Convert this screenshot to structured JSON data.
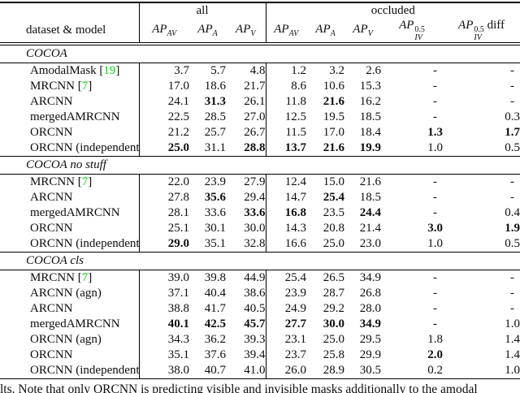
{
  "colors": {
    "citation_green": "#00DB00",
    "rule_black": "#000000"
  },
  "caption_fragment": "lts. Note that only ORCNN is predicting visible and invisible masks additionally to the amodal",
  "table": {
    "corner_label": "dataset & model",
    "groups": [
      {
        "label": "all",
        "span": 3
      },
      {
        "label": "occluded",
        "span": 5
      }
    ],
    "columns": [
      {
        "base": "AP",
        "sub": "AV"
      },
      {
        "base": "AP",
        "sub": "A"
      },
      {
        "base": "AP",
        "sub": "V"
      },
      {
        "base": "AP",
        "sub": "AV"
      },
      {
        "base": "AP",
        "sub": "A"
      },
      {
        "base": "AP",
        "sub": "V"
      },
      {
        "base": "AP",
        "sub": "IV",
        "sup": "0.5"
      },
      {
        "base": "AP",
        "sub": "IV",
        "sup": "0.5",
        "suffix": " diff"
      }
    ],
    "sections": [
      {
        "title": "COCOA",
        "rows": [
          {
            "model": "AmodalMask",
            "cite": "19",
            "values": [
              {
                "v": "3.7"
              },
              {
                "v": "5.7"
              },
              {
                "v": "4.8"
              },
              {
                "v": "1.2"
              },
              {
                "v": "3.2"
              },
              {
                "v": "2.6"
              },
              {
                "v": "-"
              },
              {
                "v": "-"
              }
            ]
          },
          {
            "model": "MRCNN",
            "cite": "7",
            "values": [
              {
                "v": "17.0"
              },
              {
                "v": "18.6"
              },
              {
                "v": "21.7"
              },
              {
                "v": "8.6"
              },
              {
                "v": "10.6"
              },
              {
                "v": "15.3"
              },
              {
                "v": "-"
              },
              {
                "v": "-"
              }
            ]
          },
          {
            "model": "ARCNN",
            "values": [
              {
                "v": "24.1"
              },
              {
                "v": "31.3",
                "bold": true
              },
              {
                "v": "26.1"
              },
              {
                "v": "11.8"
              },
              {
                "v": "21.6",
                "bold": true
              },
              {
                "v": "16.2"
              },
              {
                "v": "-"
              },
              {
                "v": "-"
              }
            ]
          },
          {
            "model": "mergedAMRCNN",
            "values": [
              {
                "v": "22.5"
              },
              {
                "v": "28.5"
              },
              {
                "v": "27.0"
              },
              {
                "v": "12.5"
              },
              {
                "v": "19.5"
              },
              {
                "v": "18.5"
              },
              {
                "v": "-"
              },
              {
                "v": "0.3"
              }
            ]
          },
          {
            "model": "ORCNN",
            "values": [
              {
                "v": "21.2"
              },
              {
                "v": "25.7"
              },
              {
                "v": "26.7"
              },
              {
                "v": "11.5"
              },
              {
                "v": "17.0"
              },
              {
                "v": "18.4"
              },
              {
                "v": "1.3",
                "bold": true
              },
              {
                "v": "1.7",
                "bold": true
              }
            ]
          },
          {
            "model": "ORCNN (independent)",
            "values": [
              {
                "v": "25.0",
                "bold": true
              },
              {
                "v": "31.1"
              },
              {
                "v": "28.8",
                "bold": true
              },
              {
                "v": "13.7",
                "bold": true
              },
              {
                "v": "21.6",
                "bold": true
              },
              {
                "v": "19.9",
                "bold": true
              },
              {
                "v": "1.0"
              },
              {
                "v": "0.5"
              }
            ]
          }
        ]
      },
      {
        "title": "COCOA no stuff",
        "rows": [
          {
            "model": "MRCNN",
            "cite": "7",
            "values": [
              {
                "v": "22.0"
              },
              {
                "v": "23.9"
              },
              {
                "v": "27.9"
              },
              {
                "v": "12.4"
              },
              {
                "v": "15.0"
              },
              {
                "v": "21.6"
              },
              {
                "v": "-"
              },
              {
                "v": "-"
              }
            ]
          },
          {
            "model": "ARCNN",
            "values": [
              {
                "v": "27.8"
              },
              {
                "v": "35.6",
                "bold": true
              },
              {
                "v": "29.4"
              },
              {
                "v": "14.7"
              },
              {
                "v": "25.4",
                "bold": true
              },
              {
                "v": "18.5"
              },
              {
                "v": "-"
              },
              {
                "v": "-"
              }
            ]
          },
          {
            "model": "mergedAMRCNN",
            "values": [
              {
                "v": "28.1"
              },
              {
                "v": "33.6"
              },
              {
                "v": "33.6",
                "bold": true
              },
              {
                "v": "16.8",
                "bold": true
              },
              {
                "v": "23.5"
              },
              {
                "v": "24.4",
                "bold": true
              },
              {
                "v": "-"
              },
              {
                "v": "0.4"
              }
            ]
          },
          {
            "model": "ORCNN",
            "values": [
              {
                "v": "25.1"
              },
              {
                "v": "30.1"
              },
              {
                "v": "30.0"
              },
              {
                "v": "14.3"
              },
              {
                "v": "20.8"
              },
              {
                "v": "21.4"
              },
              {
                "v": "3.0",
                "bold": true
              },
              {
                "v": "1.9",
                "bold": true
              }
            ]
          },
          {
            "model": "ORCNN (independent)",
            "values": [
              {
                "v": "29.0",
                "bold": true
              },
              {
                "v": "35.1"
              },
              {
                "v": "32.8"
              },
              {
                "v": "16.6"
              },
              {
                "v": "25.0"
              },
              {
                "v": "23.0"
              },
              {
                "v": "1.0"
              },
              {
                "v": "0.5"
              }
            ]
          }
        ]
      },
      {
        "title": "COCOA cls",
        "rows": [
          {
            "model": "MRCNN",
            "cite": "7",
            "values": [
              {
                "v": "39.0"
              },
              {
                "v": "39.8"
              },
              {
                "v": "44.9"
              },
              {
                "v": "25.4"
              },
              {
                "v": "26.5"
              },
              {
                "v": "34.9"
              },
              {
                "v": "-"
              },
              {
                "v": "-"
              }
            ]
          },
          {
            "model": "ARCNN (agn)",
            "values": [
              {
                "v": "37.1"
              },
              {
                "v": "40.4"
              },
              {
                "v": "38.6"
              },
              {
                "v": "23.9"
              },
              {
                "v": "28.7"
              },
              {
                "v": "26.8"
              },
              {
                "v": "-"
              },
              {
                "v": "-"
              }
            ]
          },
          {
            "model": "ARCNN",
            "values": [
              {
                "v": "38.8"
              },
              {
                "v": "41.7"
              },
              {
                "v": "40.5"
              },
              {
                "v": "24.9"
              },
              {
                "v": "29.2"
              },
              {
                "v": "28.0"
              },
              {
                "v": "-"
              },
              {
                "v": "-"
              }
            ]
          },
          {
            "model": "mergedAMRCNN",
            "values": [
              {
                "v": "40.1",
                "bold": true
              },
              {
                "v": "42.5",
                "bold": true
              },
              {
                "v": "45.7",
                "bold": true
              },
              {
                "v": "27.7",
                "bold": true
              },
              {
                "v": "30.0",
                "bold": true
              },
              {
                "v": "34.9",
                "bold": true
              },
              {
                "v": "-"
              },
              {
                "v": "1.0"
              }
            ]
          },
          {
            "model": "ORCNN (agn)",
            "values": [
              {
                "v": "34.3"
              },
              {
                "v": "36.2"
              },
              {
                "v": "39.3"
              },
              {
                "v": "23.1"
              },
              {
                "v": "25.0"
              },
              {
                "v": "29.5"
              },
              {
                "v": "1.8"
              },
              {
                "v": "1.4"
              }
            ]
          },
          {
            "model": "ORCNN",
            "values": [
              {
                "v": "35.1"
              },
              {
                "v": "37.6"
              },
              {
                "v": "39.4"
              },
              {
                "v": "23.7"
              },
              {
                "v": "25.8"
              },
              {
                "v": "29.9"
              },
              {
                "v": "2.0",
                "bold": true
              },
              {
                "v": "1.4"
              }
            ]
          },
          {
            "model": "ORCNN (independent)",
            "values": [
              {
                "v": "38.0"
              },
              {
                "v": "40.7"
              },
              {
                "v": "41.0"
              },
              {
                "v": "26.0"
              },
              {
                "v": "28.9"
              },
              {
                "v": "30.5"
              },
              {
                "v": "0.2"
              },
              {
                "v": "1.0"
              }
            ]
          }
        ]
      }
    ]
  }
}
